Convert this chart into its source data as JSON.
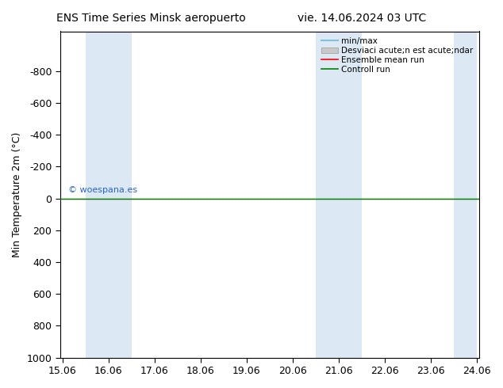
{
  "title_left": "ENS Time Series Minsk aeropuerto",
  "title_right": "vie. 14.06.2024 03 UTC",
  "ylabel": "Min Temperature 2m (°C)",
  "ylim_top": -1050,
  "ylim_bottom": 1000,
  "yticks": [
    -800,
    -600,
    -400,
    -200,
    0,
    200,
    400,
    600,
    800,
    1000
  ],
  "xtick_labels": [
    "15.06",
    "16.06",
    "17.06",
    "18.06",
    "19.06",
    "20.06",
    "21.06",
    "22.06",
    "23.06",
    "24.06"
  ],
  "xtick_positions": [
    0,
    1,
    2,
    3,
    4,
    5,
    6,
    7,
    8,
    9
  ],
  "shaded_bands": [
    [
      0.5,
      1.0
    ],
    [
      1.0,
      1.5
    ],
    [
      5.5,
      6.0
    ],
    [
      6.0,
      6.5
    ],
    [
      8.5,
      9.0
    ]
  ],
  "band_color": "#dce9f5",
  "line_y": 0.0,
  "green_line_color": "#008000",
  "red_line_color": "#ff0000",
  "cyan_line_color": "#7fbfdf",
  "gray_fill_color": "#cccccc",
  "background_color": "#ffffff",
  "plot_bg_color": "#ffffff",
  "watermark": "© woespana.es",
  "legend_label_minmax": "min/max",
  "legend_label_std": "Desviaci acute;n est acute;ndar",
  "legend_label_mean": "Ensemble mean run",
  "legend_label_ctrl": "Controll run",
  "title_fontsize": 10,
  "axis_fontsize": 9,
  "tick_fontsize": 9
}
